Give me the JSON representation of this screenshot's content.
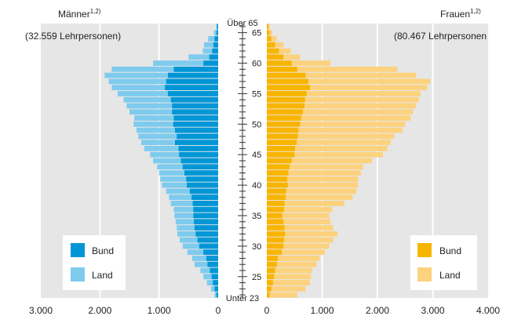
{
  "chart_data": {
    "type": "bar",
    "orientation": "horizontal",
    "title": "",
    "left_panel": {
      "header": "Männer",
      "header_sup": "1,2)",
      "subheader": "(32.559 Lehrpersonen)",
      "ticks": [
        "3.000",
        "2.000",
        "1.000",
        "0"
      ],
      "xlim": [
        0,
        3000
      ],
      "series": [
        {
          "name": "Bund",
          "color": "#0096d6"
        },
        {
          "name": "Land",
          "color": "#7fcbee"
        }
      ]
    },
    "right_panel": {
      "header": "Frauen",
      "header_sup": "1,2)",
      "subheader": "(80.467 Lehrpersonen",
      "ticks": [
        "0",
        "1.000",
        "2.000",
        "3.000",
        "4.000"
      ],
      "xlim": [
        0,
        4000
      ],
      "series": [
        {
          "name": "Bund",
          "color": "#f8b500"
        },
        {
          "name": "Land",
          "color": "#fcd27e"
        }
      ]
    },
    "age_axis": {
      "top_label": "Über 65",
      "bottom_label": "Unter 23",
      "tick_labels": [
        "65",
        "60",
        "55",
        "50",
        "45",
        "40",
        "35",
        "30",
        "25"
      ]
    },
    "ages": [
      "Über 65",
      "65",
      "64",
      "63",
      "62",
      "61",
      "60",
      "59",
      "58",
      "57",
      "56",
      "55",
      "54",
      "53",
      "52",
      "51",
      "50",
      "49",
      "48",
      "47",
      "46",
      "45",
      "44",
      "43",
      "42",
      "41",
      "40",
      "39",
      "38",
      "37",
      "36",
      "35",
      "34",
      "33",
      "32",
      "31",
      "30",
      "29",
      "28",
      "27",
      "26",
      "25",
      "24",
      "23",
      "Unter 23"
    ],
    "men_bund": [
      20,
      30,
      60,
      80,
      100,
      150,
      250,
      750,
      850,
      880,
      900,
      850,
      800,
      780,
      780,
      750,
      760,
      730,
      700,
      730,
      670,
      660,
      630,
      600,
      570,
      540,
      530,
      480,
      450,
      430,
      420,
      420,
      410,
      400,
      380,
      350,
      320,
      250,
      200,
      180,
      140,
      110,
      90,
      60,
      30
    ],
    "men_total": [
      30,
      70,
      170,
      240,
      260,
      500,
      1100,
      1800,
      1920,
      1850,
      1800,
      1700,
      1600,
      1550,
      1500,
      1420,
      1430,
      1380,
      1350,
      1300,
      1250,
      1150,
      1100,
      1030,
      1000,
      980,
      950,
      880,
      830,
      800,
      750,
      740,
      720,
      700,
      690,
      650,
      600,
      520,
      440,
      400,
      300,
      250,
      190,
      120,
      60
    ],
    "women_bund": [
      30,
      50,
      80,
      150,
      220,
      300,
      450,
      550,
      700,
      750,
      780,
      720,
      690,
      680,
      650,
      620,
      600,
      570,
      560,
      540,
      510,
      500,
      450,
      410,
      390,
      370,
      380,
      350,
      340,
      320,
      310,
      280,
      300,
      320,
      330,
      310,
      300,
      270,
      200,
      180,
      150,
      130,
      110,
      80,
      50
    ],
    "women_total": [
      50,
      100,
      180,
      300,
      430,
      600,
      1150,
      2360,
      2700,
      2950,
      2900,
      2780,
      2750,
      2700,
      2640,
      2600,
      2500,
      2450,
      2300,
      2240,
      2180,
      2100,
      1900,
      1740,
      1700,
      1650,
      1650,
      1620,
      1550,
      1400,
      1180,
      1130,
      1150,
      1200,
      1280,
      1200,
      1130,
      1050,
      950,
      900,
      820,
      800,
      780,
      700,
      550
    ]
  }
}
